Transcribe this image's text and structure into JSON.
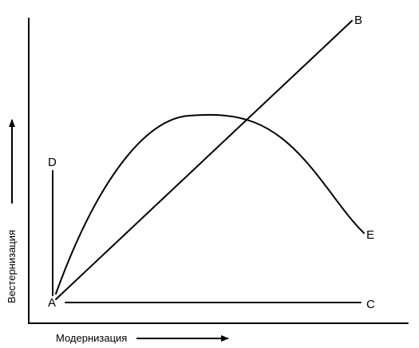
{
  "diagram": {
    "axes": {
      "x_label": "Модернизация",
      "y_label": "Вестернизация"
    },
    "points": {
      "origin": "A",
      "top_right": "B",
      "right": "C",
      "top_left": "D",
      "curve_end": "E"
    },
    "colors": {
      "ink": "#000000",
      "background": "#ffffff"
    }
  }
}
